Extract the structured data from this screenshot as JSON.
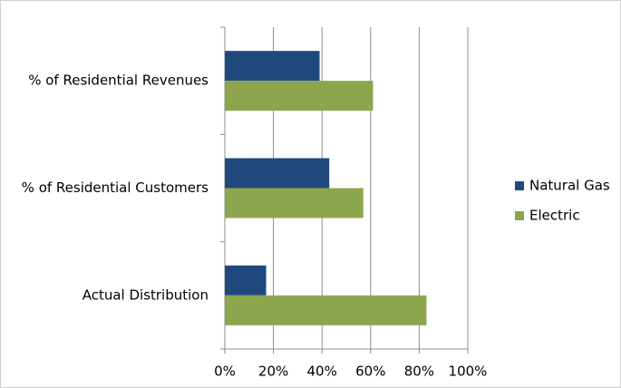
{
  "chart_data": {
    "type": "hbar",
    "categories": [
      "% of Residential Revenues",
      "% of Residential Customers",
      "Actual Distribution"
    ],
    "series": [
      {
        "name": "Natural Gas",
        "color": "#1f497d",
        "values": [
          39,
          43,
          17
        ]
      },
      {
        "name": "Electric",
        "color": "#8da64d",
        "values": [
          61,
          57,
          83
        ]
      }
    ],
    "xlim": [
      0,
      100
    ],
    "xticks": [
      {
        "value": 0,
        "label": "0%"
      },
      {
        "value": 20,
        "label": "20%"
      },
      {
        "value": 40,
        "label": "40%"
      },
      {
        "value": 60,
        "label": "60%"
      },
      {
        "value": 80,
        "label": "80%"
      },
      {
        "value": 100,
        "label": "100%"
      }
    ],
    "grid": true,
    "legend": "right"
  }
}
